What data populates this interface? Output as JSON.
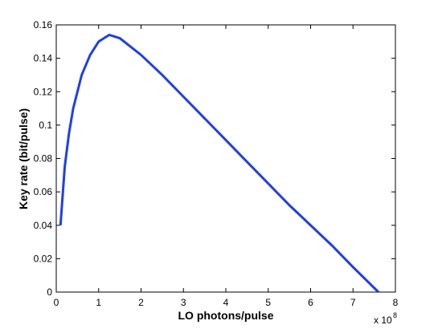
{
  "chart_data": {
    "type": "line",
    "xlabel": "LO photons/pulse",
    "ylabel": "Key rate (bit/pulse)",
    "x_multiplier": "x 10",
    "x_exponent": "8",
    "series": [
      {
        "color": "#1f3fe6",
        "x": [
          0.1,
          0.2,
          0.3,
          0.4,
          0.5,
          0.6,
          0.8,
          1.0,
          1.25,
          1.5,
          2,
          2.5,
          3,
          3.5,
          4,
          4.5,
          5,
          5.5,
          6,
          6.5,
          7,
          7.6
        ],
        "values": [
          0.04,
          0.075,
          0.095,
          0.11,
          0.12,
          0.13,
          0.142,
          0.15,
          0.154,
          0.152,
          0.142,
          0.13,
          0.117,
          0.104,
          0.091,
          0.078,
          0.065,
          0.052,
          0.04,
          0.028,
          0.015,
          0
        ]
      }
    ],
    "xlim": [
      0,
      8
    ],
    "ylim": [
      0,
      0.16
    ],
    "xticks": [
      0,
      1,
      2,
      3,
      4,
      5,
      6,
      7,
      8
    ],
    "yticks": [
      0,
      0.02,
      0.04,
      0.06,
      0.08,
      0.1,
      0.12,
      0.14,
      0.16
    ],
    "grid": false
  }
}
